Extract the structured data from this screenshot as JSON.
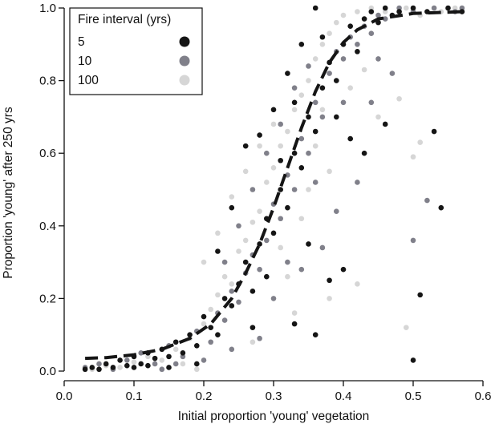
{
  "chart_data": {
    "type": "scatter",
    "xlabel": "Initial proportion 'young' vegetation",
    "ylabel": "Proportion 'young' after 250 yrs",
    "xlim": [
      0.0,
      0.6
    ],
    "ylim": [
      0.0,
      1.0
    ],
    "x_ticks": [
      "0.0",
      "0.1",
      "0.2",
      "0.3",
      "0.4",
      "0.5",
      "0.6"
    ],
    "y_ticks": [
      "0.0",
      "0.2",
      "0.4",
      "0.6",
      "0.8",
      "1.0"
    ],
    "grid": false,
    "legend": {
      "title": "Fire interval (yrs)",
      "position": "top-left",
      "entries": [
        {
          "label": "5",
          "color": "#151515"
        },
        {
          "label": "10",
          "color": "#80808a"
        },
        {
          "label": "100",
          "color": "#d6d6d6"
        }
      ]
    },
    "fit_line": {
      "style": "dashed",
      "color": "#151515",
      "x": [
        0.03,
        0.06,
        0.1,
        0.14,
        0.18,
        0.21,
        0.24,
        0.26,
        0.28,
        0.3,
        0.32,
        0.34,
        0.36,
        0.38,
        0.4,
        0.42,
        0.45,
        0.5,
        0.57
      ],
      "y": [
        0.035,
        0.037,
        0.045,
        0.06,
        0.09,
        0.13,
        0.2,
        0.27,
        0.35,
        0.45,
        0.56,
        0.67,
        0.77,
        0.85,
        0.905,
        0.94,
        0.97,
        0.985,
        0.99
      ]
    },
    "series": [
      {
        "name": "5",
        "color": "#151515",
        "points": [
          [
            0.03,
            0.005
          ],
          [
            0.04,
            0.01
          ],
          [
            0.05,
            0.005
          ],
          [
            0.06,
            0.02
          ],
          [
            0.07,
            0.01
          ],
          [
            0.08,
            0.03
          ],
          [
            0.09,
            0.015
          ],
          [
            0.1,
            0.04
          ],
          [
            0.11,
            0.02
          ],
          [
            0.12,
            0.05
          ],
          [
            0.13,
            0.035
          ],
          [
            0.14,
            0.06
          ],
          [
            0.15,
            0.04
          ],
          [
            0.16,
            0.08
          ],
          [
            0.17,
            0.05
          ],
          [
            0.18,
            0.1
          ],
          [
            0.19,
            0.07
          ],
          [
            0.2,
            0.15
          ],
          [
            0.21,
            0.12
          ],
          [
            0.22,
            0.1
          ],
          [
            0.23,
            0.2
          ],
          [
            0.24,
            0.18
          ],
          [
            0.25,
            0.24
          ],
          [
            0.26,
            0.3
          ],
          [
            0.27,
            0.22
          ],
          [
            0.28,
            0.35
          ],
          [
            0.29,
            0.42
          ],
          [
            0.3,
            0.38
          ],
          [
            0.31,
            0.5
          ],
          [
            0.32,
            0.45
          ],
          [
            0.33,
            0.6
          ],
          [
            0.34,
            0.56
          ],
          [
            0.35,
            0.7
          ],
          [
            0.36,
            0.66
          ],
          [
            0.37,
            0.78
          ],
          [
            0.38,
            0.85
          ],
          [
            0.39,
            0.8
          ],
          [
            0.4,
            0.9
          ],
          [
            0.41,
            0.95
          ],
          [
            0.42,
            0.88
          ],
          [
            0.43,
            0.97
          ],
          [
            0.44,
            0.99
          ],
          [
            0.45,
            0.96
          ],
          [
            0.46,
            1.0
          ],
          [
            0.47,
            0.98
          ],
          [
            0.48,
            0.99
          ],
          [
            0.5,
            1.0
          ],
          [
            0.52,
            0.99
          ],
          [
            0.55,
            1.0
          ],
          [
            0.57,
            0.99
          ],
          [
            0.26,
            0.62
          ],
          [
            0.28,
            0.65
          ],
          [
            0.3,
            0.72
          ],
          [
            0.32,
            0.82
          ],
          [
            0.34,
            0.9
          ],
          [
            0.36,
            1.0
          ],
          [
            0.22,
            0.33
          ],
          [
            0.24,
            0.45
          ],
          [
            0.35,
            0.35
          ],
          [
            0.38,
            0.25
          ],
          [
            0.4,
            0.28
          ],
          [
            0.43,
            0.6
          ],
          [
            0.46,
            0.68
          ],
          [
            0.53,
            0.66
          ],
          [
            0.54,
            0.45
          ],
          [
            0.51,
            0.21
          ],
          [
            0.5,
            0.03
          ],
          [
            0.36,
            0.1
          ],
          [
            0.33,
            0.13
          ],
          [
            0.19,
            0.02
          ],
          [
            0.15,
            0.01
          ],
          [
            0.12,
            0.015
          ],
          [
            0.1,
            0.01
          ],
          [
            0.27,
            0.12
          ],
          [
            0.29,
            0.26
          ],
          [
            0.31,
            0.58
          ],
          [
            0.33,
            0.74
          ],
          [
            0.37,
            0.92
          ],
          [
            0.39,
            0.7
          ],
          [
            0.41,
            0.64
          ]
        ]
      },
      {
        "name": "10",
        "color": "#80808a",
        "points": [
          [
            0.03,
            0.01
          ],
          [
            0.05,
            0.02
          ],
          [
            0.07,
            0.005
          ],
          [
            0.09,
            0.03
          ],
          [
            0.11,
            0.05
          ],
          [
            0.13,
            0.02
          ],
          [
            0.15,
            0.07
          ],
          [
            0.17,
            0.04
          ],
          [
            0.19,
            0.11
          ],
          [
            0.21,
            0.08
          ],
          [
            0.22,
            0.16
          ],
          [
            0.23,
            0.14
          ],
          [
            0.24,
            0.22
          ],
          [
            0.25,
            0.19
          ],
          [
            0.26,
            0.27
          ],
          [
            0.27,
            0.32
          ],
          [
            0.28,
            0.28
          ],
          [
            0.29,
            0.36
          ],
          [
            0.3,
            0.46
          ],
          [
            0.31,
            0.42
          ],
          [
            0.32,
            0.54
          ],
          [
            0.33,
            0.5
          ],
          [
            0.34,
            0.64
          ],
          [
            0.35,
            0.6
          ],
          [
            0.36,
            0.74
          ],
          [
            0.37,
            0.7
          ],
          [
            0.38,
            0.82
          ],
          [
            0.39,
            0.88
          ],
          [
            0.4,
            0.86
          ],
          [
            0.41,
            0.92
          ],
          [
            0.42,
            0.9
          ],
          [
            0.43,
            0.95
          ],
          [
            0.44,
            0.93
          ],
          [
            0.45,
            0.98
          ],
          [
            0.46,
            0.97
          ],
          [
            0.48,
            1.0
          ],
          [
            0.5,
            0.99
          ],
          [
            0.53,
            1.0
          ],
          [
            0.56,
            0.99
          ],
          [
            0.57,
            1.0
          ],
          [
            0.25,
            0.4
          ],
          [
            0.27,
            0.5
          ],
          [
            0.29,
            0.6
          ],
          [
            0.31,
            0.68
          ],
          [
            0.33,
            0.78
          ],
          [
            0.35,
            0.84
          ],
          [
            0.23,
            0.3
          ],
          [
            0.34,
            0.28
          ],
          [
            0.37,
            0.34
          ],
          [
            0.39,
            0.44
          ],
          [
            0.42,
            0.52
          ],
          [
            0.44,
            0.74
          ],
          [
            0.47,
            0.82
          ],
          [
            0.5,
            0.36
          ],
          [
            0.52,
            0.47
          ],
          [
            0.3,
            0.2
          ],
          [
            0.28,
            0.09
          ],
          [
            0.2,
            0.03
          ],
          [
            0.16,
            0.02
          ],
          [
            0.14,
            0.005
          ],
          [
            0.24,
            0.06
          ],
          [
            0.32,
            0.3
          ],
          [
            0.36,
            0.52
          ],
          [
            0.4,
            0.74
          ],
          [
            0.45,
            0.86
          ]
        ]
      },
      {
        "name": "100",
        "color": "#d6d6d6",
        "points": [
          [
            0.04,
            0.005
          ],
          [
            0.06,
            0.015
          ],
          [
            0.08,
            0.01
          ],
          [
            0.1,
            0.025
          ],
          [
            0.12,
            0.04
          ],
          [
            0.14,
            0.03
          ],
          [
            0.16,
            0.06
          ],
          [
            0.18,
            0.09
          ],
          [
            0.2,
            0.13
          ],
          [
            0.21,
            0.17
          ],
          [
            0.22,
            0.21
          ],
          [
            0.23,
            0.26
          ],
          [
            0.24,
            0.24
          ],
          [
            0.25,
            0.33
          ],
          [
            0.26,
            0.36
          ],
          [
            0.27,
            0.41
          ],
          [
            0.28,
            0.44
          ],
          [
            0.29,
            0.52
          ],
          [
            0.3,
            0.56
          ],
          [
            0.31,
            0.62
          ],
          [
            0.32,
            0.66
          ],
          [
            0.33,
            0.72
          ],
          [
            0.34,
            0.76
          ],
          [
            0.35,
            0.8
          ],
          [
            0.36,
            0.86
          ],
          [
            0.37,
            0.9
          ],
          [
            0.38,
            0.93
          ],
          [
            0.39,
            0.96
          ],
          [
            0.4,
            0.98
          ],
          [
            0.42,
            0.99
          ],
          [
            0.44,
            1.0
          ],
          [
            0.46,
            0.99
          ],
          [
            0.49,
            1.0
          ],
          [
            0.51,
            0.98
          ],
          [
            0.54,
            0.99
          ],
          [
            0.56,
            1.0
          ],
          [
            0.2,
            0.3
          ],
          [
            0.22,
            0.38
          ],
          [
            0.24,
            0.48
          ],
          [
            0.26,
            0.55
          ],
          [
            0.28,
            0.62
          ],
          [
            0.3,
            0.68
          ],
          [
            0.32,
            0.26
          ],
          [
            0.35,
            0.5
          ],
          [
            0.38,
            0.55
          ],
          [
            0.41,
            0.78
          ],
          [
            0.43,
            0.83
          ],
          [
            0.45,
            0.7
          ],
          [
            0.48,
            0.75
          ],
          [
            0.51,
            0.63
          ],
          [
            0.5,
            0.59
          ],
          [
            0.49,
            0.12
          ],
          [
            0.42,
            0.24
          ],
          [
            0.38,
            0.2
          ],
          [
            0.33,
            0.16
          ],
          [
            0.19,
            0.005
          ],
          [
            0.17,
            0.02
          ],
          [
            0.27,
            0.08
          ],
          [
            0.31,
            0.34
          ],
          [
            0.36,
            0.62
          ],
          [
            0.34,
            0.42
          ],
          [
            0.37,
            0.72
          ]
        ]
      }
    ]
  }
}
